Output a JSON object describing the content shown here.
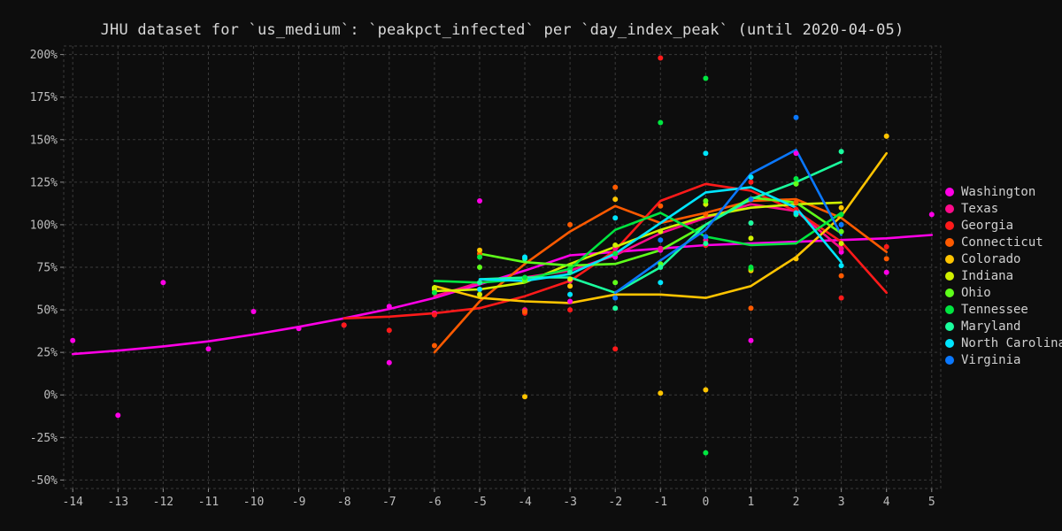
{
  "chart_data": {
    "type": "scatter",
    "title": "JHU dataset for `us_medium`: `peakpct_infected` per `day_index_peak` (until 2020-04-05)",
    "xlabel": "",
    "ylabel": "",
    "xlim": [
      -14.2,
      5.2
    ],
    "ylim": [
      -55,
      205
    ],
    "x_ticks": [
      -14,
      -13,
      -12,
      -11,
      -10,
      -9,
      -8,
      -7,
      -6,
      -5,
      -4,
      -3,
      -2,
      -1,
      0,
      1,
      2,
      3,
      4,
      5
    ],
    "x_tick_labels": [
      "-14",
      "-13",
      "-12",
      "-11",
      "-10",
      "-9",
      "-8",
      "-7",
      "-6",
      "-5",
      "-4",
      "-3",
      "-2",
      "-1",
      "0",
      "1",
      "2",
      "3",
      "4",
      "5"
    ],
    "y_ticks": [
      -50,
      -25,
      0,
      25,
      50,
      75,
      100,
      125,
      150,
      175,
      200
    ],
    "y_tick_labels": [
      "-50%",
      "-25%",
      "0%",
      "25%",
      "50%",
      "75%",
      "100%",
      "125%",
      "150%",
      "175%",
      "200%"
    ],
    "grid": true,
    "legend_position": "right",
    "series": [
      {
        "name": "Washington",
        "color": "#ff00e6",
        "points": [
          [
            -14,
            32
          ],
          [
            -13,
            -12
          ],
          [
            -12,
            66
          ],
          [
            -11,
            27
          ],
          [
            -10,
            49
          ],
          [
            -9,
            39
          ],
          [
            -8,
            41
          ],
          [
            -7,
            52
          ],
          [
            -7,
            19
          ],
          [
            -6,
            48
          ],
          [
            -5,
            114
          ],
          [
            -4,
            49
          ],
          [
            -3,
            55
          ],
          [
            -2,
            81
          ],
          [
            -1,
            85
          ],
          [
            0,
            88
          ],
          [
            1,
            32
          ],
          [
            2,
            142
          ],
          [
            3,
            84
          ],
          [
            4,
            72
          ],
          [
            5,
            106
          ]
        ],
        "line": [
          [
            -14,
            24
          ],
          [
            -13,
            26
          ],
          [
            -12,
            28.5
          ],
          [
            -11,
            31.5
          ],
          [
            -10,
            35.5
          ],
          [
            -9,
            40
          ],
          [
            -8,
            45
          ],
          [
            -7,
            50.5
          ],
          [
            -6,
            57
          ],
          [
            -5,
            65
          ],
          [
            -4,
            73
          ],
          [
            -3,
            82
          ],
          [
            -2,
            84
          ],
          [
            -1,
            86
          ],
          [
            0,
            88
          ],
          [
            1,
            89
          ],
          [
            2,
            90
          ],
          [
            3,
            91
          ],
          [
            4,
            92
          ],
          [
            5,
            94
          ]
        ]
      },
      {
        "name": "Texas",
        "color": "#ff0a8c",
        "points": [
          [
            -6,
            48
          ],
          [
            -5,
            62
          ],
          [
            -4,
            50
          ],
          [
            -3,
            67
          ],
          [
            -2,
            86
          ],
          [
            -1,
            86
          ],
          [
            0,
            91
          ],
          [
            1,
            101
          ],
          [
            2,
            108
          ],
          [
            3,
            86
          ]
        ],
        "line": [
          [
            -6,
            58
          ],
          [
            -5,
            66
          ],
          [
            -4,
            69
          ],
          [
            -3,
            73
          ],
          [
            -2,
            82
          ],
          [
            -1,
            95
          ],
          [
            0,
            104
          ],
          [
            1,
            112
          ],
          [
            2,
            108
          ],
          [
            3,
            86
          ]
        ]
      },
      {
        "name": "Georgia",
        "color": "#ff1a1a",
        "points": [
          [
            -8,
            41
          ],
          [
            -7,
            38
          ],
          [
            -6,
            47
          ],
          [
            -5,
            62
          ],
          [
            -4,
            48
          ],
          [
            -3,
            50
          ],
          [
            -2,
            27
          ],
          [
            -1,
            198
          ],
          [
            0,
            88
          ],
          [
            1,
            125
          ],
          [
            2,
            109
          ],
          [
            3,
            57
          ],
          [
            4,
            87
          ]
        ],
        "line": [
          [
            -8,
            45
          ],
          [
            -7,
            46
          ],
          [
            -6,
            48
          ],
          [
            -5,
            51
          ],
          [
            -4,
            58
          ],
          [
            -3,
            67
          ],
          [
            -2,
            85
          ],
          [
            -1,
            114
          ],
          [
            0,
            124
          ],
          [
            1,
            120
          ],
          [
            2,
            108
          ],
          [
            3,
            90
          ],
          [
            4,
            60
          ]
        ]
      },
      {
        "name": "Connecticut",
        "color": "#ff5a00",
        "points": [
          [
            -6,
            29
          ],
          [
            -5,
            83
          ],
          [
            -4,
            49
          ],
          [
            -3,
            100
          ],
          [
            -2,
            122
          ],
          [
            -1,
            111
          ],
          [
            0,
            106
          ],
          [
            1,
            51
          ],
          [
            2,
            113
          ],
          [
            3,
            70
          ],
          [
            4,
            80
          ]
        ],
        "line": [
          [
            -6,
            25
          ],
          [
            -5,
            55
          ],
          [
            -4,
            77
          ],
          [
            -3,
            96
          ],
          [
            -2,
            111
          ],
          [
            -1,
            101
          ],
          [
            0,
            107
          ],
          [
            1,
            114
          ],
          [
            2,
            115
          ],
          [
            3,
            104
          ],
          [
            4,
            84
          ]
        ]
      },
      {
        "name": "Colorado",
        "color": "#ffc400",
        "points": [
          [
            -6,
            62
          ],
          [
            -5,
            85
          ],
          [
            -4,
            -1
          ],
          [
            -3,
            64
          ],
          [
            -2,
            115
          ],
          [
            -1,
            1
          ],
          [
            0,
            3
          ],
          [
            1,
            73
          ],
          [
            2,
            80
          ],
          [
            3,
            110
          ],
          [
            4,
            152
          ]
        ],
        "line": [
          [
            -6,
            64
          ],
          [
            -5,
            57
          ],
          [
            -4,
            55
          ],
          [
            -3,
            54
          ],
          [
            -2,
            59
          ],
          [
            -1,
            59
          ],
          [
            0,
            57
          ],
          [
            1,
            64
          ],
          [
            2,
            81
          ],
          [
            3,
            105
          ],
          [
            4,
            142
          ]
        ]
      },
      {
        "name": "Indiana",
        "color": "#d0f000",
        "points": [
          [
            -6,
            63
          ],
          [
            -5,
            59
          ],
          [
            -4,
            68
          ],
          [
            -3,
            68
          ],
          [
            -2,
            88
          ],
          [
            -1,
            96
          ],
          [
            0,
            112
          ],
          [
            1,
            92
          ],
          [
            2,
            124
          ],
          [
            3,
            89
          ]
        ],
        "line": [
          [
            -6,
            61
          ],
          [
            -5,
            62
          ],
          [
            -4,
            66
          ],
          [
            -3,
            77
          ],
          [
            -2,
            87
          ],
          [
            -1,
            97
          ],
          [
            0,
            105
          ],
          [
            1,
            110
          ],
          [
            2,
            112
          ],
          [
            3,
            113
          ]
        ]
      },
      {
        "name": "Ohio",
        "color": "#5fff1a",
        "points": [
          [
            -5,
            75
          ],
          [
            -4,
            67
          ],
          [
            -3,
            74
          ],
          [
            -2,
            66
          ],
          [
            -1,
            77
          ],
          [
            0,
            114
          ],
          [
            1,
            74
          ],
          [
            2,
            124
          ],
          [
            3,
            96
          ]
        ],
        "line": [
          [
            -5,
            83
          ],
          [
            -4,
            78
          ],
          [
            -3,
            76
          ],
          [
            -2,
            77
          ],
          [
            -1,
            85
          ],
          [
            0,
            100
          ],
          [
            1,
            116
          ],
          [
            2,
            113
          ],
          [
            3,
            95
          ]
        ]
      },
      {
        "name": "Tennessee",
        "color": "#00e640",
        "points": [
          [
            -6,
            60
          ],
          [
            -5,
            81
          ],
          [
            -4,
            69
          ],
          [
            -3,
            74
          ],
          [
            -2,
            83
          ],
          [
            -1,
            160
          ],
          [
            0,
            186
          ],
          [
            0,
            -34
          ],
          [
            1,
            75
          ],
          [
            2,
            127
          ],
          [
            3,
            106
          ]
        ],
        "line": [
          [
            -6,
            67
          ],
          [
            -5,
            66
          ],
          [
            -4,
            68
          ],
          [
            -3,
            74
          ],
          [
            -2,
            97
          ],
          [
            -1,
            107
          ],
          [
            0,
            93
          ],
          [
            1,
            88
          ],
          [
            2,
            89
          ],
          [
            3,
            107
          ]
        ]
      },
      {
        "name": "Maryland",
        "color": "#1aff9e",
        "points": [
          [
            -5,
            66
          ],
          [
            -4,
            80
          ],
          [
            -3,
            72
          ],
          [
            -2,
            51
          ],
          [
            -1,
            75
          ],
          [
            0,
            89
          ],
          [
            1,
            101
          ],
          [
            2,
            106
          ],
          [
            3,
            143
          ]
        ],
        "line": [
          [
            -5,
            68
          ],
          [
            -4,
            69
          ],
          [
            -3,
            69
          ],
          [
            -2,
            60
          ],
          [
            -1,
            75
          ],
          [
            0,
            100
          ],
          [
            1,
            115
          ],
          [
            2,
            125
          ],
          [
            3,
            137
          ]
        ]
      },
      {
        "name": "North Carolina",
        "color": "#00e5ff",
        "points": [
          [
            -5,
            62
          ],
          [
            -4,
            81
          ],
          [
            -3,
            59
          ],
          [
            -2,
            104
          ],
          [
            -1,
            66
          ],
          [
            0,
            142
          ],
          [
            1,
            128
          ],
          [
            2,
            107
          ],
          [
            3,
            76
          ]
        ],
        "line": [
          [
            -5,
            68
          ],
          [
            -4,
            67
          ],
          [
            -3,
            71
          ],
          [
            -2,
            83
          ],
          [
            -1,
            101
          ],
          [
            0,
            119
          ],
          [
            1,
            122
          ],
          [
            2,
            110
          ],
          [
            3,
            78
          ]
        ]
      },
      {
        "name": "Virginia",
        "color": "#0a78ff",
        "points": [
          [
            -2,
            57
          ],
          [
            -1,
            91
          ],
          [
            0,
            93
          ],
          [
            1,
            115
          ],
          [
            2,
            163
          ],
          [
            3,
            100
          ]
        ],
        "line": [
          [
            -2,
            60
          ],
          [
            -1,
            79
          ],
          [
            0,
            97
          ],
          [
            1,
            130
          ],
          [
            2,
            144
          ],
          [
            3,
            94
          ]
        ]
      }
    ]
  }
}
